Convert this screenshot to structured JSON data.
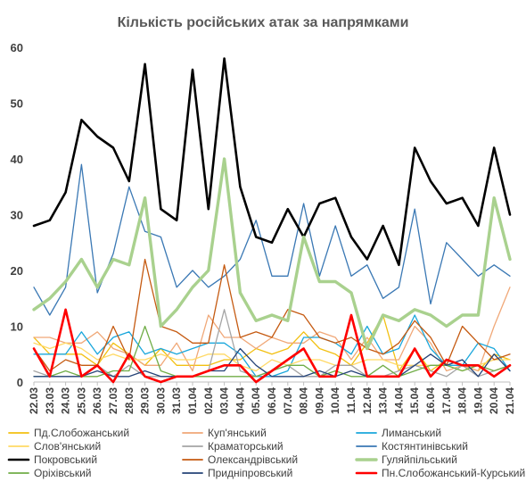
{
  "chart_data": {
    "type": "line",
    "title": "Кількість російських атак за напрямками",
    "xlabel": "",
    "ylabel": "",
    "ylim": [
      0,
      60
    ],
    "yticks": [
      0,
      10,
      20,
      30,
      40,
      50,
      60
    ],
    "grid": false,
    "legend_position": "bottom",
    "x": [
      "22.03",
      "23.03",
      "24.03",
      "25.03",
      "26.03",
      "27.03",
      "28.03",
      "29.03",
      "30.03",
      "31.03",
      "01.04",
      "02.04",
      "03.04",
      "04.04",
      "05.04",
      "06.04",
      "07.04",
      "08.04",
      "09.04",
      "10.04",
      "11.04",
      "12.04",
      "13.04",
      "14.04",
      "15.04",
      "16.04",
      "17.04",
      "18.04",
      "19.04",
      "20.04",
      "21.04"
    ],
    "series": [
      {
        "name": "Пд.Слобожанський",
        "color": "#f2c012",
        "width": 1.3,
        "values": [
          8,
          5,
          5,
          5,
          3,
          7,
          5,
          3,
          6,
          3,
          3,
          3,
          4,
          4,
          6,
          5,
          6,
          9,
          6,
          5,
          3,
          7,
          12,
          2,
          6,
          2,
          4,
          3,
          2,
          5,
          4
        ]
      },
      {
        "name": "Куп'янський",
        "color": "#f0a878",
        "width": 1.3,
        "values": [
          8,
          8,
          7,
          7,
          9,
          6,
          5,
          3,
          3,
          7,
          2,
          12,
          8,
          8,
          6,
          8,
          7,
          7,
          9,
          8,
          4,
          8,
          4,
          4,
          10,
          7,
          2,
          3,
          2,
          10,
          17
        ]
      },
      {
        "name": "Лиманський",
        "color": "#1aa7dc",
        "width": 1.3,
        "values": [
          5,
          5,
          5,
          9,
          5,
          8,
          9,
          5,
          6,
          5,
          6,
          7,
          7,
          5,
          1,
          1,
          2,
          8,
          8,
          7,
          5,
          10,
          5,
          6,
          12,
          6,
          3,
          3,
          7,
          6,
          2
        ]
      },
      {
        "name": "Слов'янський",
        "color": "#ffd966",
        "width": 1.3,
        "values": [
          7,
          6,
          7,
          6,
          4,
          5,
          4,
          4,
          5,
          4,
          4,
          5,
          5,
          3,
          2,
          4,
          3,
          4,
          4,
          3,
          3,
          4,
          4,
          3,
          3,
          3,
          3,
          2,
          3,
          4,
          4
        ]
      },
      {
        "name": "Краматорський",
        "color": "#a5a5a5",
        "width": 1.3,
        "values": [
          2,
          1,
          1,
          1,
          3,
          1,
          3,
          1,
          1,
          1,
          1,
          2,
          13,
          2,
          1,
          2,
          3,
          1,
          1,
          3,
          3,
          1,
          1,
          2,
          3,
          2,
          1,
          3,
          1,
          2,
          3
        ]
      },
      {
        "name": "Костянтинівський",
        "color": "#3a78b4",
        "width": 1.3,
        "values": [
          17,
          12,
          17,
          39,
          16,
          23,
          35,
          27,
          26,
          17,
          20,
          17,
          19,
          22,
          29,
          19,
          19,
          32,
          19,
          28,
          19,
          21,
          15,
          17,
          31,
          14,
          25,
          22,
          19,
          21,
          19
        ]
      },
      {
        "name": "Покровський",
        "color": "#000000",
        "width": 2.6,
        "values": [
          28,
          29,
          34,
          47,
          44,
          42,
          36,
          57,
          31,
          29,
          56,
          31,
          58,
          35,
          26,
          25,
          31,
          26,
          32,
          33,
          26,
          22,
          28,
          21,
          42,
          36,
          32,
          33,
          28,
          42,
          30
        ]
      },
      {
        "name": "Олександрівський",
        "color": "#c55a11",
        "width": 1.3,
        "values": [
          6,
          2,
          4,
          3,
          3,
          10,
          4,
          22,
          10,
          9,
          7,
          7,
          21,
          8,
          9,
          8,
          13,
          12,
          8,
          7,
          8,
          6,
          5,
          7,
          11,
          8,
          3,
          10,
          7,
          4,
          5
        ]
      },
      {
        "name": "Гуляйпільський",
        "color": "#a9d18e",
        "width": 3.4,
        "values": [
          13,
          15,
          18,
          22,
          17,
          22,
          21,
          33,
          10,
          13,
          17,
          20,
          40,
          16,
          11,
          12,
          11,
          26,
          18,
          18,
          16,
          6,
          12,
          11,
          13,
          12,
          10,
          12,
          12,
          33,
          22
        ]
      },
      {
        "name": "Оріхівський",
        "color": "#70ad47",
        "width": 1.3,
        "values": [
          1,
          1,
          2,
          1,
          1,
          2,
          2,
          10,
          2,
          1,
          1,
          1,
          1,
          1,
          1,
          2,
          3,
          3,
          1,
          2,
          1,
          1,
          3,
          1,
          2,
          3,
          3,
          2,
          3,
          2,
          3
        ]
      },
      {
        "name": "Придніпровський",
        "color": "#264478",
        "width": 1.3,
        "values": [
          1,
          1,
          1,
          1,
          2,
          1,
          1,
          2,
          1,
          1,
          1,
          2,
          2,
          6,
          3,
          1,
          1,
          1,
          2,
          1,
          2,
          1,
          1,
          1,
          3,
          5,
          3,
          4,
          1,
          5,
          2
        ]
      },
      {
        "name": "Пн.Слобожанський-Курський",
        "color": "#ff0000",
        "width": 2.6,
        "values": [
          6,
          1,
          13,
          1,
          3,
          0,
          5,
          1,
          0,
          1,
          1,
          2,
          3,
          3,
          0,
          2,
          4,
          6,
          1,
          1,
          12,
          1,
          1,
          1,
          6,
          1,
          4,
          3,
          3,
          1,
          3
        ]
      }
    ]
  }
}
